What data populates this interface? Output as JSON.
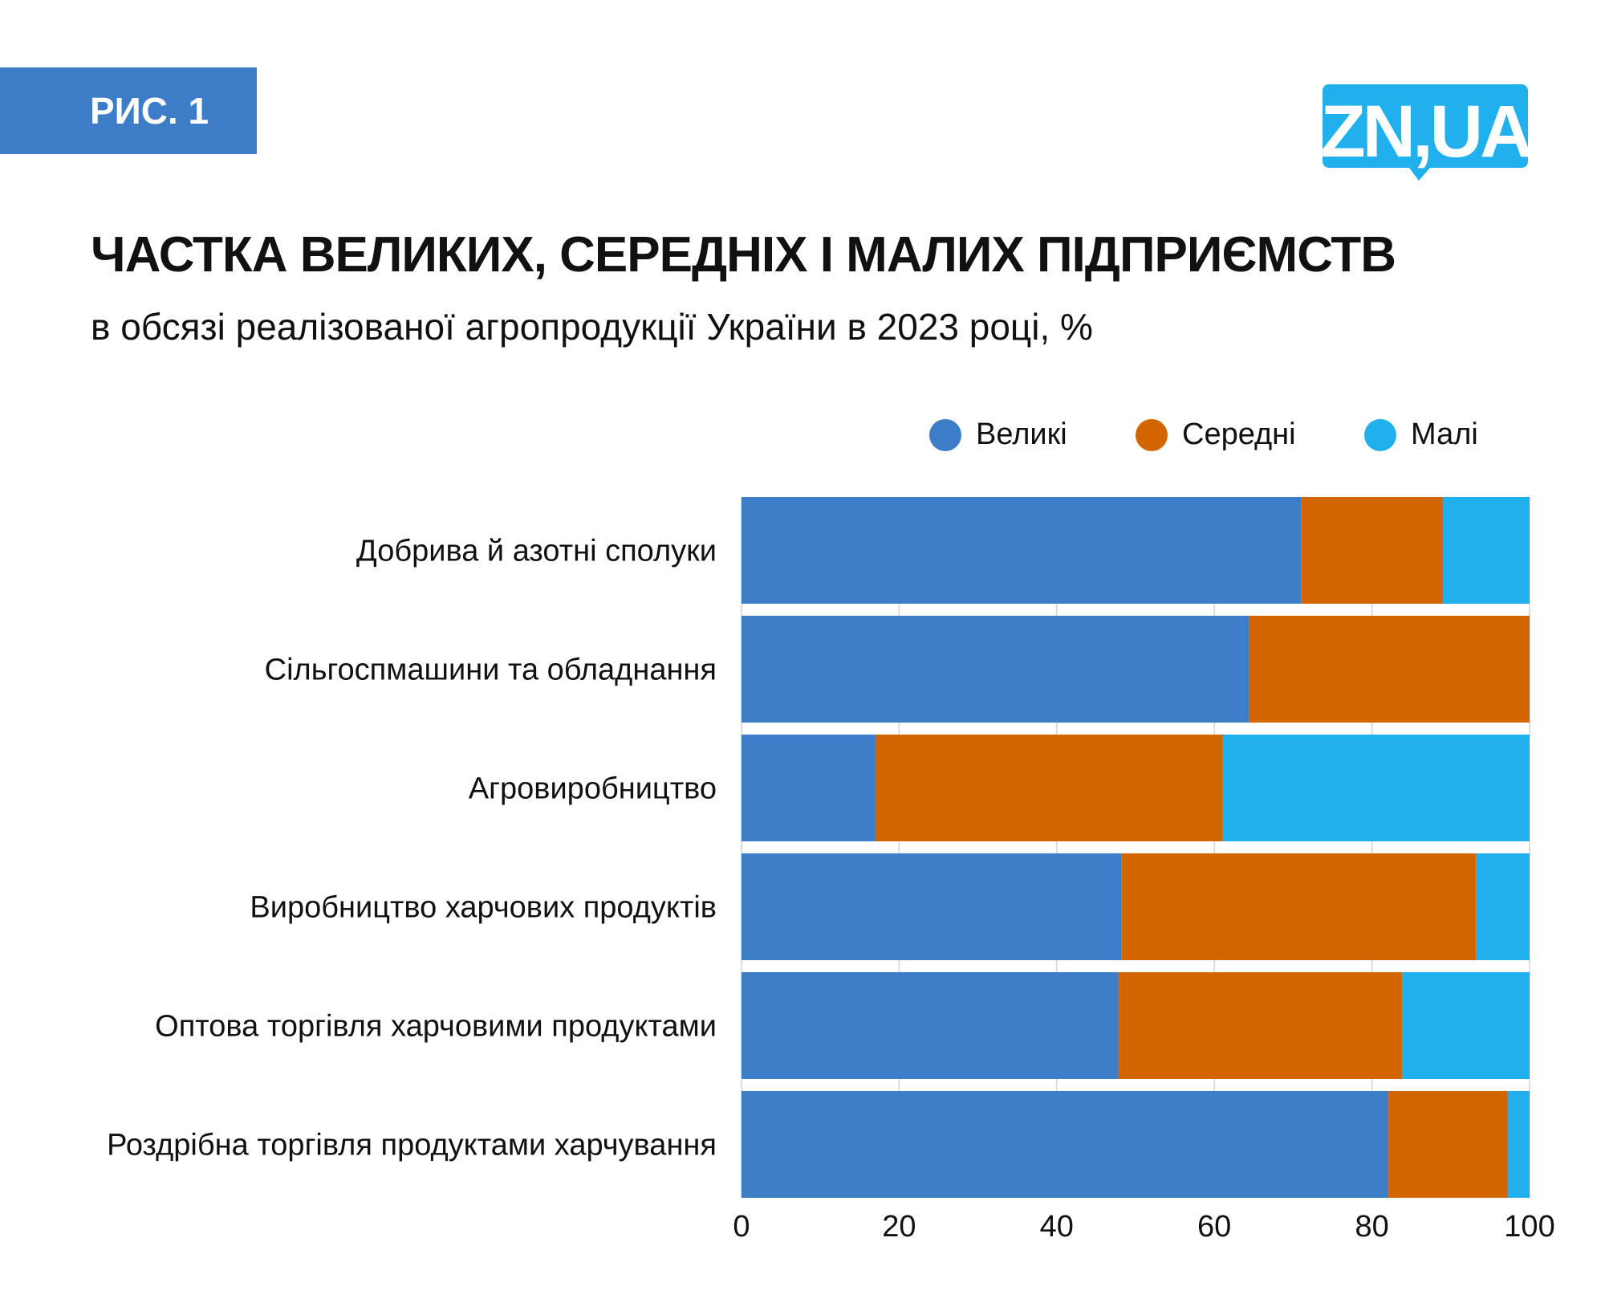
{
  "figure_label": "РИС. 1",
  "logo_text": "ZN,UA",
  "chart_data": {
    "type": "bar",
    "orientation": "horizontal",
    "stacked": true,
    "title": "ЧАСТКА ВЕЛИКИХ, СЕРЕДНІХ І МАЛИХ ПІДПРИЄМСТВ",
    "subtitle": "в обсязі реалізованої агропродукції України в 2023 році, %",
    "categories": [
      "Добрива й азотні сполуки",
      "Сільгоспмашини та обладнання",
      "Агровиробництво",
      "Виробництво харчових продуктів",
      "Оптова торгівля харчовими продуктами",
      "Роздрібна торгівля продуктами харчування"
    ],
    "series": [
      {
        "name": "Великі",
        "color": "#3d7dc8",
        "values": [
          71,
          64.4,
          17,
          48.2,
          47.8,
          82.1
        ]
      },
      {
        "name": "Середні",
        "color": "#d36500",
        "values": [
          18,
          35.6,
          44,
          45,
          36,
          15.1
        ]
      },
      {
        "name": "Малі",
        "color": "#20b0ee",
        "values": [
          11,
          0,
          39,
          6.8,
          16.2,
          2.8
        ]
      }
    ],
    "xlim": [
      0,
      100
    ],
    "xticks": [
      "0",
      "20",
      "40",
      "60",
      "80",
      "100"
    ],
    "grid": true,
    "legend_position": "top-right"
  }
}
